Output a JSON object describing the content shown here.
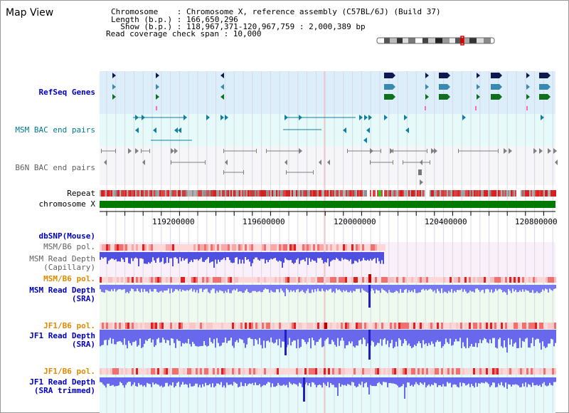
{
  "header": {
    "title": "Map View",
    "info_lines": [
      "Chromosome    : Chromosome X, reference assembly (C57BL/6J) (Build 37)",
      "Length (b.p.) : 166,650,296",
      "  Show (b.p.) : 118,967,371-120,967,759 : 2,000,389 bp",
      "Read coverage check span : 10,000"
    ]
  },
  "tracks": {
    "refseq": "RefSeq Genes",
    "msm_bac": "MSM BAC end pairs",
    "b6n_bac": "B6N BAC end pairs",
    "repeat": "Repeat",
    "chromosome": "chromosome X",
    "dbsnp": "dbSNP(Mouse)",
    "msm_pol_cap": "MSM/B6 pol.",
    "msm_depth_cap_1": "MSM Read Depth",
    "msm_depth_cap_2": "(Capillary)",
    "msm_pol_sra": "MSM/B6 pol.",
    "msm_depth_sra_1": "MSM Read Depth",
    "msm_depth_sra_2": "(SRA)",
    "jf1_pol": "JF1/B6 pol.",
    "jf1_depth_1": "JF1 Read Depth",
    "jf1_depth_2": "(SRA)",
    "jf1_pol_trim": "JF1/B6 pol.",
    "jf1_trim_1": "JF1 Read Depth",
    "jf1_trim_2": "(SRA trimmed)"
  },
  "axis": {
    "ticks": [
      "119200000",
      "119600000",
      "120000000",
      "120400000",
      "120800000"
    ]
  },
  "colors": {
    "refseq_bg": "#dceefa",
    "bac_bg": "#e6fafa",
    "chrom_green": "#007a00",
    "depth_blue": "#6e6ef0",
    "pol_red": "#e83030",
    "label_blue": "#0000c0",
    "label_orange": "#e08a00"
  }
}
